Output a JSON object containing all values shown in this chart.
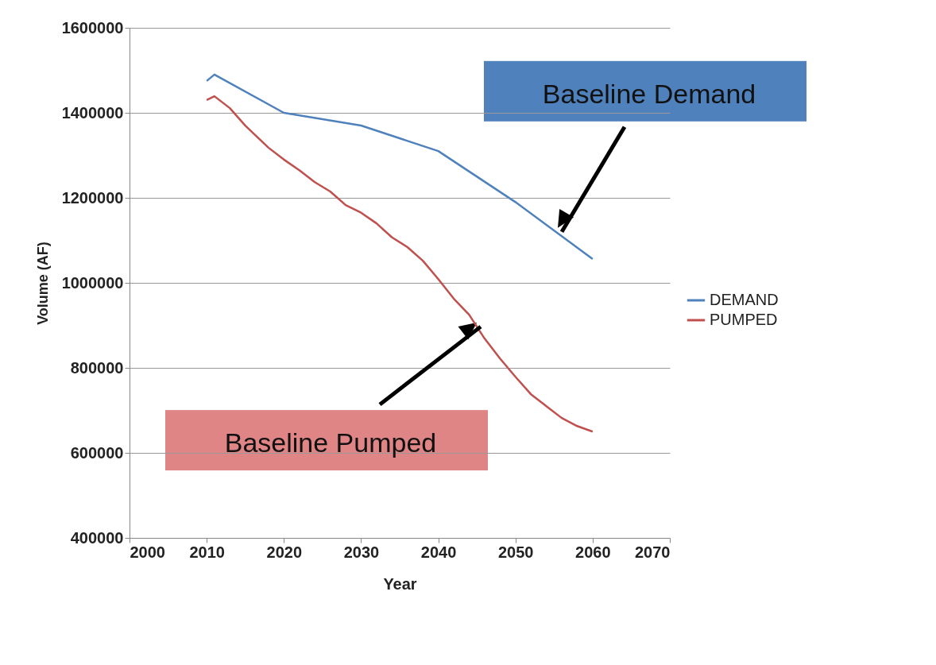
{
  "chart_data": {
    "type": "line",
    "xlabel": "Year",
    "ylabel": "Volume (AF)",
    "xlim": [
      2000,
      2070
    ],
    "xticks": [
      2000,
      2010,
      2020,
      2030,
      2040,
      2050,
      2060,
      2070
    ],
    "ylim": [
      400000,
      1600000
    ],
    "yticks": [
      400000,
      600000,
      800000,
      1000000,
      1200000,
      1400000,
      1600000
    ],
    "grid": "y",
    "legend": "right",
    "marker": "none",
    "line_style": "solid",
    "series": [
      {
        "name": "DEMAND",
        "color": "#4f81bd",
        "x": [
          2010,
          2011,
          2020,
          2030,
          2040,
          2050,
          2060
        ],
        "values": [
          1475000,
          1490000,
          1400000,
          1370000,
          1310000,
          1190000,
          1056000
        ]
      },
      {
        "name": "PUMPED",
        "color": "#c0504d",
        "x": [
          2010,
          2011,
          2013,
          2015,
          2018,
          2020,
          2022,
          2024,
          2026,
          2028,
          2030,
          2032,
          2034,
          2036,
          2038,
          2040,
          2042,
          2044,
          2046,
          2048,
          2050,
          2052,
          2054,
          2056,
          2058,
          2060
        ],
        "values": [
          1430000,
          1439000,
          1411000,
          1370000,
          1318000,
          1290000,
          1265000,
          1237000,
          1215000,
          1183000,
          1165000,
          1140000,
          1107000,
          1084000,
          1052000,
          1009000,
          963000,
          925000,
          869000,
          822000,
          779000,
          738000,
          710000,
          682000,
          663000,
          650000
        ]
      }
    ],
    "annotations": [
      {
        "text": "Baseline Demand",
        "x": 2056,
        "y": 1120000
      },
      {
        "text": "Baseline Pumped",
        "x": 2045.5,
        "y": 897000
      }
    ]
  }
}
